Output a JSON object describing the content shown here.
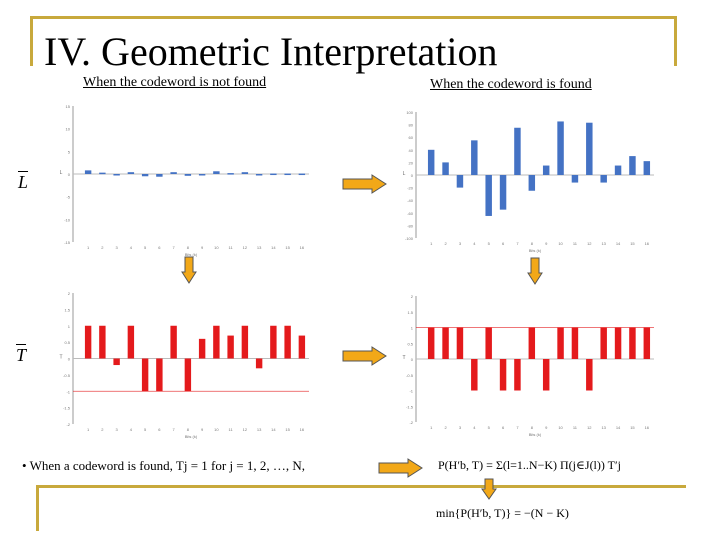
{
  "title": "IV. Geometric Interpretation",
  "subtitle_left": "When the codeword is not found",
  "subtitle_right": "When the codeword is found",
  "row_labels": {
    "L": "L",
    "T": "T"
  },
  "bullet_text": "• When a codeword is found, Tj = 1 for j = 1, 2, …, N,",
  "formula1": "P(H′b, T) = Σ(l=1..N−K) Π(j∈J(l)) T′j",
  "formula2": "min{P(H′b, T)} = −(N − K)",
  "colors": {
    "accent": "#c8a93c",
    "blue": "#4472c4",
    "red": "#e41a1c",
    "arrow": "#f2a818"
  },
  "chart_data": [
    {
      "type": "bar",
      "name": "chart-L-not-found",
      "xlabel": "Bits (k)",
      "ylabel": "L",
      "categories": [
        "1",
        "2",
        "3",
        "4",
        "5",
        "6",
        "7",
        "8",
        "9",
        "10",
        "11",
        "12",
        "13",
        "14",
        "15",
        "16"
      ],
      "values": [
        0.8,
        0.3,
        -0.2,
        0.4,
        -0.5,
        -0.6,
        0.4,
        -0.4,
        -0.1,
        0.6,
        0.2,
        0.4,
        -0.1,
        0.1,
        0.1,
        0.1
      ],
      "yticks": [
        "15",
        "10",
        "5",
        "0",
        "-5",
        "-10",
        "-15"
      ],
      "ylim": [
        -15,
        15
      ]
    },
    {
      "type": "bar",
      "name": "chart-L-found",
      "xlabel": "Bits (k)",
      "ylabel": "L",
      "categories": [
        "1",
        "2",
        "3",
        "4",
        "5",
        "6",
        "7",
        "8",
        "9",
        "10",
        "11",
        "12",
        "13",
        "14",
        "15",
        "16"
      ],
      "values": [
        40,
        20,
        -20,
        55,
        -65,
        -55,
        75,
        -25,
        15,
        85,
        -12,
        83,
        -12,
        15,
        30,
        22
      ],
      "yticks": [
        "100",
        "80",
        "60",
        "40",
        "20",
        "0",
        "-20",
        "-40",
        "-60",
        "-80",
        "-100"
      ],
      "ylim": [
        -100,
        100
      ]
    },
    {
      "type": "bar",
      "name": "chart-T-not-found",
      "xlabel": "Bits (k)",
      "ylabel": "T",
      "categories": [
        "1",
        "2",
        "3",
        "4",
        "5",
        "6",
        "7",
        "8",
        "9",
        "10",
        "11",
        "12",
        "13",
        "14",
        "15",
        "16"
      ],
      "values": [
        1,
        1,
        -0.2,
        1,
        -1,
        -1,
        1,
        -1,
        0.6,
        1,
        0.7,
        1,
        -0.3,
        1,
        1,
        0.7
      ],
      "yticks": [
        "2",
        "1.5",
        "1",
        "0.5",
        "0",
        "-0.5",
        "-1",
        "-1.5",
        "-2"
      ],
      "reference_line": -1,
      "ylim": [
        -2,
        2
      ]
    },
    {
      "type": "bar",
      "name": "chart-T-found",
      "xlabel": "Bits (k)",
      "ylabel": "T",
      "categories": [
        "1",
        "2",
        "3",
        "4",
        "5",
        "6",
        "7",
        "8",
        "9",
        "10",
        "11",
        "12",
        "13",
        "14",
        "15",
        "16"
      ],
      "values": [
        1,
        1,
        1,
        -1,
        1,
        -1,
        -1,
        1,
        -1,
        1,
        1,
        -1,
        1,
        1,
        1,
        1
      ],
      "yticks": [
        "2",
        "1.5",
        "1",
        "0.5",
        "0",
        "-0.5",
        "-1",
        "-1.5",
        "-2"
      ],
      "reference_line": 1,
      "ylim": [
        -2,
        2
      ]
    }
  ]
}
